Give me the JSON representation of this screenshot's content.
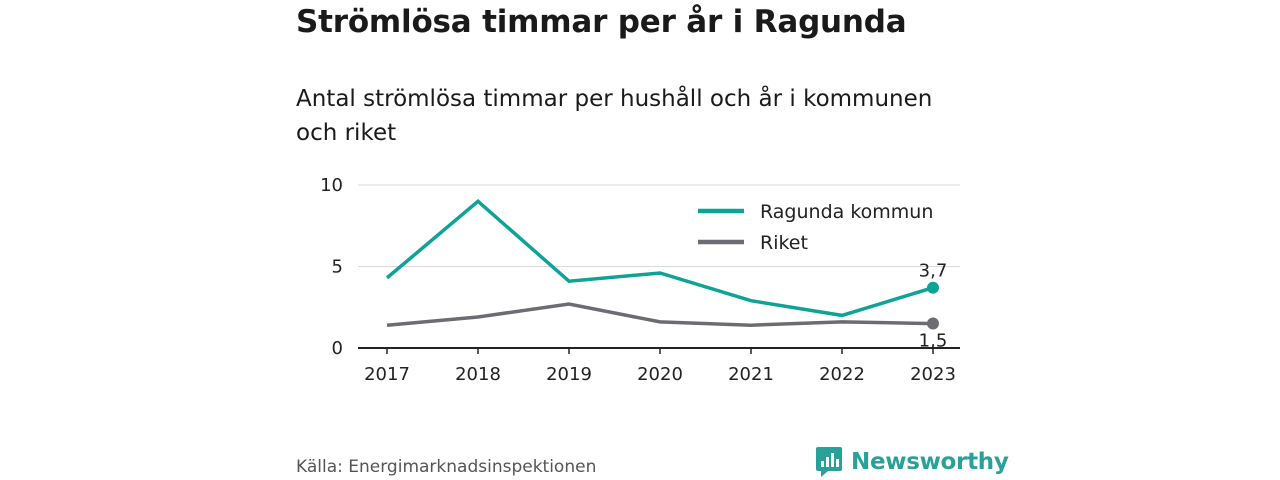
{
  "title": "Strömlösa timmar per år i Ragunda",
  "subtitle": "Antal strömlösa timmar per hushåll och år i kommunen och riket",
  "source": "Källa: Energimarknadsinspektionen",
  "brand": {
    "name": "Newsworthy",
    "logo_icon": "newsworthy-logo-icon",
    "color": "#2aa198"
  },
  "chart_data": {
    "type": "line",
    "x": [
      "2017",
      "2018",
      "2019",
      "2020",
      "2021",
      "2022",
      "2023"
    ],
    "ylim": [
      0,
      10
    ],
    "yticks": [
      "0",
      "5",
      "10"
    ],
    "grid": true,
    "legend_position": "top-right",
    "series": [
      {
        "name": "Ragunda kommun",
        "color": "#0fa397",
        "values": [
          4.3,
          9.0,
          4.1,
          4.6,
          2.9,
          2.0,
          3.7
        ],
        "end_label": "3,7"
      },
      {
        "name": "Riket",
        "color": "#6e6c72",
        "values": [
          1.4,
          1.9,
          2.7,
          1.6,
          1.4,
          1.6,
          1.5
        ],
        "end_label": "1,5"
      }
    ]
  }
}
